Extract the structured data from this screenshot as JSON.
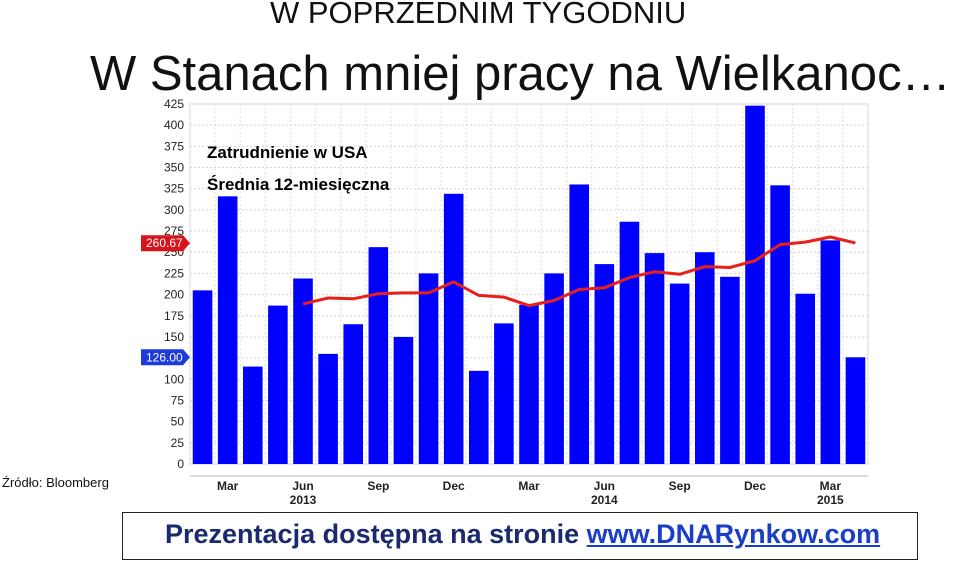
{
  "kicker": "W POPRZEDNIM TYGODNIU",
  "headline": "W Stanach mniej pracy na Wielkanoc…",
  "source": "Źródło: Bloomberg",
  "footer": {
    "text": "Prezentacja dostępna na stronie ",
    "link": "www.DNARynkow.com"
  },
  "colors": {
    "bars": "#0000ff",
    "avg_line": "#e8201a",
    "callout": "#d8141a",
    "legend_series": "#1a2aa8",
    "legend_avg": "#e23a1a"
  },
  "chart_data": {
    "type": "bar",
    "grid": true,
    "ylim": [
      0,
      425
    ],
    "y_ticks": [
      0,
      25,
      50,
      75,
      100,
      125,
      150,
      175,
      200,
      225,
      250,
      275,
      300,
      325,
      350,
      375,
      400,
      425
    ],
    "x_tick_labels": [
      {
        "label": "Mar",
        "index": 1
      },
      {
        "label": "Jun",
        "index": 4
      },
      {
        "label": "Sep",
        "index": 7
      },
      {
        "label": "Dec",
        "index": 10
      },
      {
        "label": "Mar",
        "index": 13
      },
      {
        "label": "Jun",
        "index": 16
      },
      {
        "label": "Sep",
        "index": 19
      },
      {
        "label": "Dec",
        "index": 22
      },
      {
        "label": "Mar",
        "index": 25
      }
    ],
    "year_labels": [
      {
        "label": "2013",
        "index": 4
      },
      {
        "label": "2014",
        "index": 16
      },
      {
        "label": "2015",
        "index": 25
      }
    ],
    "legend": [
      "Zatrudnienie w USA",
      "Średnia 12-miesięczna"
    ],
    "legend_position": "top-left",
    "series": [
      {
        "name": "Zatrudnienie w USA",
        "type": "bar",
        "values": [
          205,
          316,
          115,
          187,
          219,
          130,
          165,
          256,
          150,
          225,
          319,
          110,
          166,
          188,
          225,
          330,
          236,
          286,
          249,
          213,
          250,
          221,
          423,
          329,
          201,
          264,
          126
        ]
      },
      {
        "name": "Średnia 12-miesięczna",
        "type": "line",
        "start_index": 4,
        "values": [
          189,
          196,
          195,
          201,
          202,
          202,
          215,
          199,
          197,
          187,
          193,
          206,
          208,
          220,
          227,
          224,
          233,
          232,
          240,
          259,
          262,
          268,
          261
        ]
      }
    ],
    "callouts": [
      "260.67",
      "126.00"
    ],
    "callout_values": [
      260.67,
      126.0
    ]
  }
}
